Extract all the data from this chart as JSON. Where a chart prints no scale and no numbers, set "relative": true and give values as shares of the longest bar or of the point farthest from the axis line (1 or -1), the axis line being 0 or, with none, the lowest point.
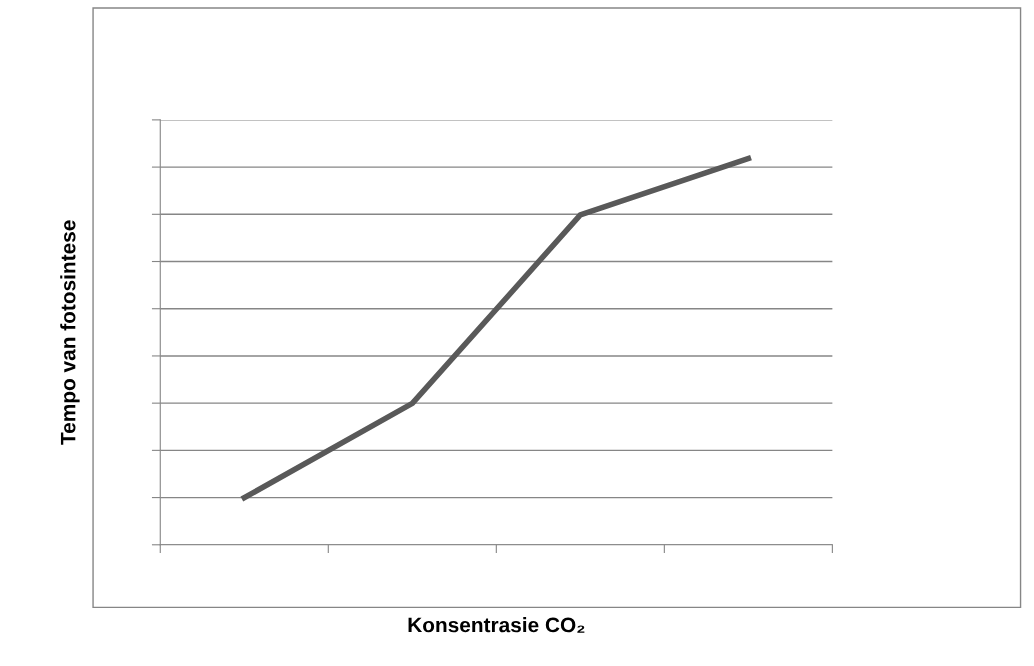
{
  "chart_data": {
    "type": "line",
    "xlabel": "Konsentrasie CO₂",
    "ylabel": "Tempo van fotosintese",
    "relative": true,
    "categories": [
      null,
      null,
      null,
      null
    ],
    "series": [
      {
        "color": "#595959",
        "values": [
          0.122,
          0.366,
          0.854,
          1
        ]
      }
    ],
    "grid": "y",
    "legend": false,
    "tick_labels": false,
    "marker": "none",
    "line_style": "solid"
  }
}
